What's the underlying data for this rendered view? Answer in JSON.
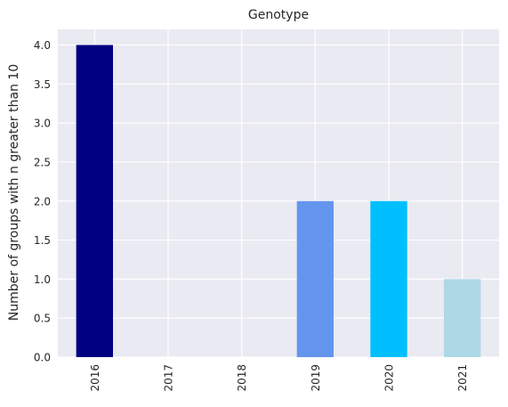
{
  "chart_data": {
    "type": "bar",
    "title": "Genotype",
    "xlabel": "",
    "ylabel": "Number of groups with n greater than 10",
    "categories": [
      "2016",
      "2017",
      "2018",
      "2019",
      "2020",
      "2021"
    ],
    "values": [
      4,
      0,
      0,
      2,
      2,
      1
    ],
    "bar_colors": [
      "#000080",
      "#000080",
      "#000080",
      "#6495ED",
      "#00BFFF",
      "#ADD8E6"
    ],
    "ylim": [
      0,
      4.2
    ],
    "yticks": [
      0.0,
      0.5,
      1.0,
      1.5,
      2.0,
      2.5,
      3.0,
      3.5,
      4.0
    ],
    "ytick_labels": [
      "0.0",
      "0.5",
      "1.0",
      "1.5",
      "2.0",
      "2.5",
      "3.0",
      "3.5",
      "4.0"
    ],
    "grid": true,
    "background_color": "#EAEAF2"
  }
}
